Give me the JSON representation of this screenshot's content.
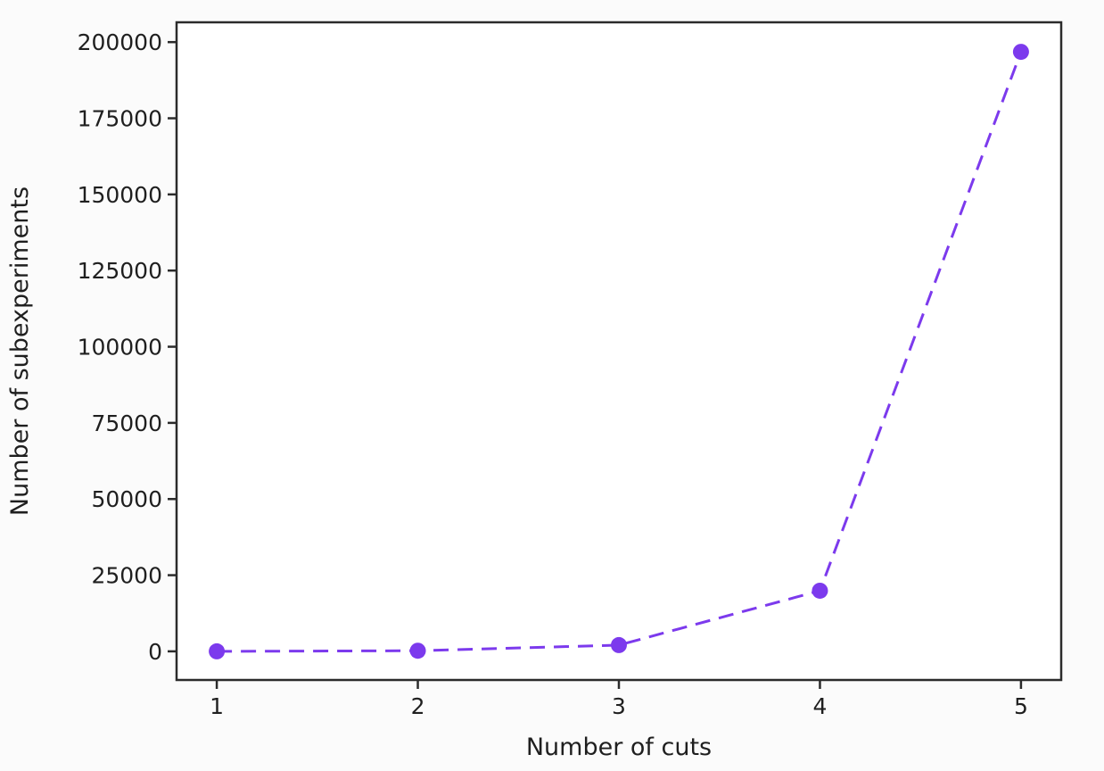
{
  "figure": {
    "background": "#fbfbfb",
    "plot_background": "#ffffff",
    "axis_color": "#2b2b2b",
    "text_color": "#1f1f1f"
  },
  "chart_data": {
    "type": "line",
    "title": "",
    "xlabel": "Number of cuts",
    "ylabel": "Number of subexperiments",
    "x": [
      1,
      2,
      3,
      4,
      5
    ],
    "values": [
      0,
      200,
      2050,
      19900,
      196800
    ],
    "xlim": [
      0.8,
      5.2
    ],
    "ylim": [
      -9400,
      206500
    ],
    "xticks": [
      1,
      2,
      3,
      4,
      5
    ],
    "xtick_labels": [
      "1",
      "2",
      "3",
      "4",
      "5"
    ],
    "yticks": [
      0,
      25000,
      50000,
      75000,
      100000,
      125000,
      150000,
      175000,
      200000
    ],
    "ytick_labels": [
      "0",
      "25000",
      "50000",
      "75000",
      "100000",
      "125000",
      "150000",
      "175000",
      "200000"
    ],
    "grid": false,
    "legend": null,
    "line_color": "#7C3AED",
    "line_style": "dashed",
    "marker": "circle"
  }
}
